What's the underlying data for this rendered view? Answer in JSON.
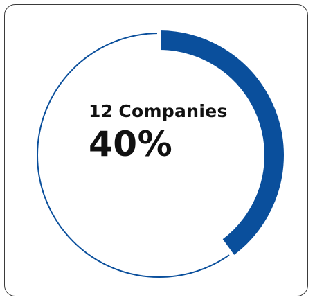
{
  "chart_data": {
    "type": "donut",
    "value": 40,
    "max": 100,
    "count": "12",
    "count_label": "Companies",
    "percent_label": "40%",
    "filled_color": "#0a4f9c",
    "track_color": "#0a4f9c",
    "border_color": "#3a3a3a"
  }
}
